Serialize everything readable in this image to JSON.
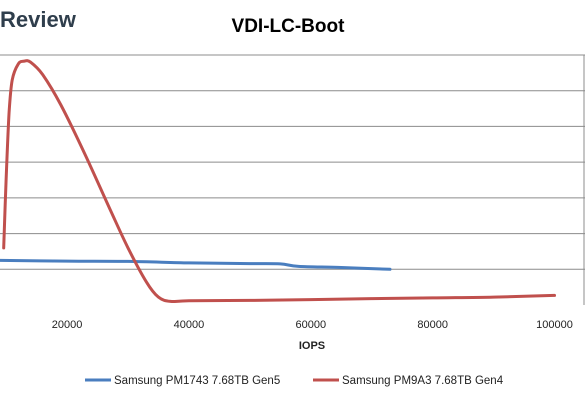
{
  "brand": {
    "logo_text": "Review"
  },
  "chart_data": {
    "type": "line",
    "title": "VDI-LC-Boot",
    "xlabel": "IOPS",
    "ylabel": "",
    "xlim": [
      9000,
      105000
    ],
    "x_ticks": [
      20000,
      40000,
      60000,
      80000,
      100000
    ],
    "x_tick_labels": [
      "20000",
      "40000",
      "60000",
      "80000",
      "100000"
    ],
    "ylim": [
      0,
      7
    ],
    "y_gridlines": [
      1,
      2,
      3,
      4,
      5,
      6,
      7
    ],
    "y_tick_labels": [],
    "grid": true,
    "legend": "bottom",
    "series": [
      {
        "name": "Samsung PM1743 7.68TB Gen5",
        "color": "#4a7ebf",
        "x": [
          9000,
          20000,
          30000,
          40000,
          50000,
          55000,
          58000,
          65000,
          73000
        ],
        "y": [
          1.25,
          1.23,
          1.22,
          1.18,
          1.16,
          1.15,
          1.08,
          1.05,
          1.0
        ]
      },
      {
        "name": "Samsung PM9A3 7.68TB Gen4",
        "color": "#c0504d",
        "x": [
          9600,
          10000,
          10500,
          11000,
          12000,
          13000,
          14000,
          16000,
          19000,
          23000,
          27000,
          30000,
          33000,
          35000,
          37000,
          40000,
          50000,
          60000,
          70000,
          80000,
          90000,
          100000
        ],
        "y": [
          1.6,
          3.5,
          5.4,
          6.3,
          6.75,
          6.83,
          6.8,
          6.45,
          5.6,
          4.2,
          2.7,
          1.6,
          0.65,
          0.22,
          0.1,
          0.12,
          0.13,
          0.15,
          0.18,
          0.2,
          0.22,
          0.27
        ]
      }
    ]
  }
}
